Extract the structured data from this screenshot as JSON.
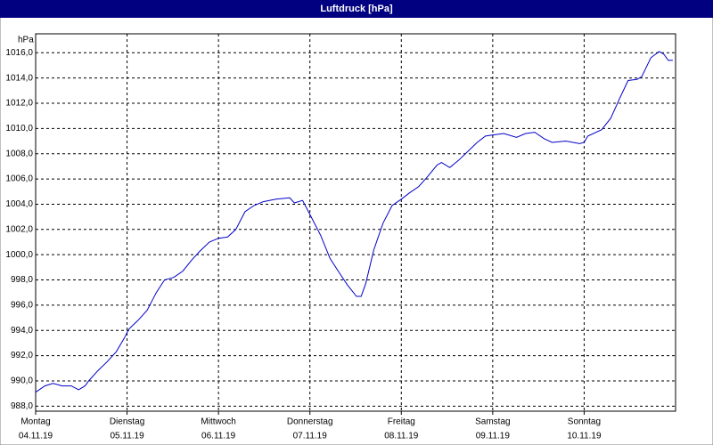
{
  "chart_data": {
    "type": "line",
    "title": "Luftdruck [hPa]",
    "y_unit": "hPa",
    "color": "#0000c8",
    "grid": true,
    "xlim": [
      0,
      7
    ],
    "xticks": [
      {
        "value": 0,
        "label": "Montag",
        "date": "04.11.19"
      },
      {
        "value": 1,
        "label": "Dienstag",
        "date": "05.11.19"
      },
      {
        "value": 2,
        "label": "Mittwoch",
        "date": "06.11.19"
      },
      {
        "value": 3,
        "label": "Donnerstag",
        "date": "07.11.19"
      },
      {
        "value": 4,
        "label": "Freitag",
        "date": "08.11.19"
      },
      {
        "value": 5,
        "label": "Samstag",
        "date": "09.11.19"
      },
      {
        "value": 6,
        "label": "Sonntag",
        "date": "10.11.19"
      }
    ],
    "ylim": [
      987.6,
      1017.5
    ],
    "yticks": [
      {
        "value": 988,
        "label": "988,0"
      },
      {
        "value": 990,
        "label": "990,0"
      },
      {
        "value": 992,
        "label": "992,0"
      },
      {
        "value": 994,
        "label": "994,0"
      },
      {
        "value": 996,
        "label": "996,0"
      },
      {
        "value": 998,
        "label": "998,0"
      },
      {
        "value": 1000,
        "label": "1000,0"
      },
      {
        "value": 1002,
        "label": "1002,0"
      },
      {
        "value": 1004,
        "label": "1004,0"
      },
      {
        "value": 1006,
        "label": "1006,0"
      },
      {
        "value": 1008,
        "label": "1008,0"
      },
      {
        "value": 1010,
        "label": "1010,0"
      },
      {
        "value": 1012,
        "label": "1012,0"
      },
      {
        "value": 1014,
        "label": "1014,0"
      },
      {
        "value": 1016,
        "label": "1016,0"
      }
    ],
    "x": [
      0.0,
      0.1,
      0.19,
      0.29,
      0.39,
      0.47,
      0.54,
      0.58,
      0.68,
      0.78,
      0.88,
      0.97,
      1.02,
      1.12,
      1.22,
      1.32,
      1.41,
      1.51,
      1.61,
      1.71,
      1.8,
      1.9,
      2.0,
      2.1,
      2.19,
      2.29,
      2.39,
      2.49,
      2.63,
      2.78,
      2.83,
      2.92,
      3.02,
      3.12,
      3.22,
      3.31,
      3.41,
      3.51,
      3.56,
      3.61,
      3.7,
      3.8,
      3.9,
      4.0,
      4.09,
      4.19,
      4.29,
      4.39,
      4.44,
      4.53,
      4.63,
      4.73,
      4.83,
      4.92,
      5.02,
      5.12,
      5.26,
      5.36,
      5.46,
      5.56,
      5.65,
      5.8,
      5.95,
      6.0,
      6.04,
      6.19,
      6.29,
      6.39,
      6.48,
      6.58,
      6.63,
      6.73,
      6.82,
      6.87,
      6.92,
      6.97
    ],
    "values": [
      989.1,
      989.6,
      989.8,
      989.6,
      989.6,
      989.3,
      989.6,
      990.0,
      990.8,
      991.5,
      992.3,
      993.4,
      994.1,
      994.8,
      995.6,
      997.0,
      998.0,
      998.2,
      998.7,
      999.6,
      1000.3,
      1001.0,
      1001.3,
      1001.4,
      1002.0,
      1003.4,
      1003.9,
      1004.2,
      1004.4,
      1004.5,
      1004.1,
      1004.3,
      1002.9,
      1001.5,
      999.7,
      998.7,
      997.6,
      996.7,
      996.7,
      997.7,
      1000.4,
      1002.5,
      1003.9,
      1004.4,
      1004.9,
      1005.4,
      1006.2,
      1007.1,
      1007.3,
      1006.9,
      1007.5,
      1008.2,
      1008.9,
      1009.4,
      1009.5,
      1009.6,
      1009.3,
      1009.6,
      1009.7,
      1009.2,
      1008.9,
      1009.0,
      1008.8,
      1008.9,
      1009.4,
      1009.9,
      1010.8,
      1012.4,
      1013.8,
      1013.9,
      1014.1,
      1015.6,
      1016.1,
      1015.9,
      1015.4,
      1015.4
    ]
  }
}
